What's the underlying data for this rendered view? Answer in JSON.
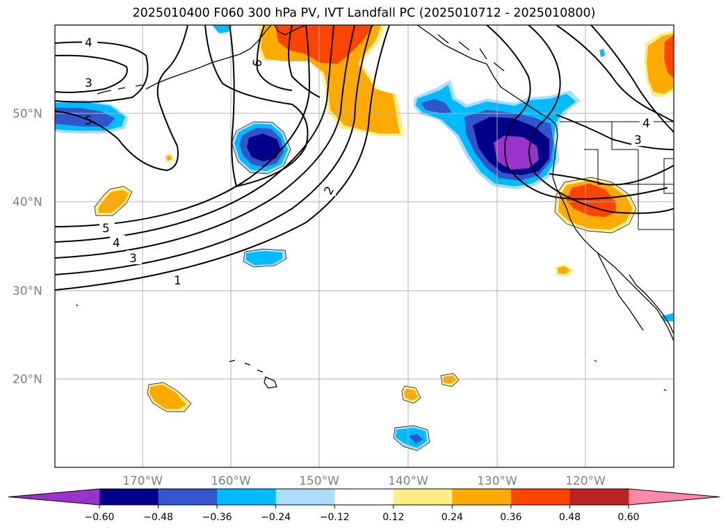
{
  "title": "2025010400 F060 300 hPa PV, IVT Landfall PC (2025010712 - 2025010800)",
  "lat_ticks": [
    {
      "value": 50,
      "label": "50°N"
    },
    {
      "value": 40,
      "label": "40°N"
    },
    {
      "value": 30,
      "label": "30°N"
    },
    {
      "value": 20,
      "label": "20°N"
    }
  ],
  "lon_ticks": [
    {
      "value": -170,
      "label": "170°W"
    },
    {
      "value": -160,
      "label": "160°W"
    },
    {
      "value": -150,
      "label": "150°W"
    },
    {
      "value": -140,
      "label": "140°W"
    },
    {
      "value": -130,
      "label": "130°W"
    },
    {
      "value": -120,
      "label": "120°W"
    }
  ],
  "colorbar": {
    "ticks": [
      "−0.60",
      "−0.48",
      "−0.36",
      "−0.24",
      "−0.12",
      "0.12",
      "0.24",
      "0.36",
      "0.48",
      "0.60"
    ],
    "colors": [
      "#9933cc",
      "#000088",
      "#3355cc",
      "#00bbff",
      "#aaddff",
      "#ffffff",
      "#ffee88",
      "#ffaa00",
      "#ff4400",
      "#bb2222",
      "#ff88aa"
    ]
  },
  "contour_labels": [
    "4",
    "3",
    "5",
    "5",
    "4",
    "3",
    "1",
    "2",
    "6",
    "4",
    "3"
  ]
}
